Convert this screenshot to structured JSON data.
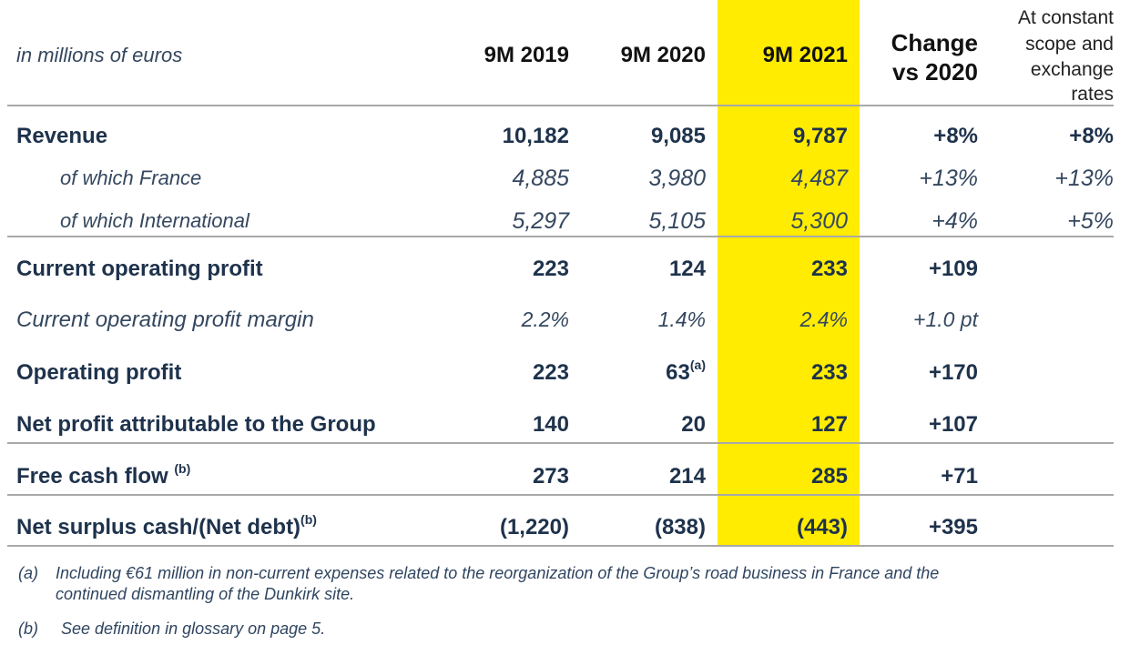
{
  "header": {
    "unit_label": "in millions of euros",
    "col_2019": "9M 2019",
    "col_2020": "9M 2020",
    "col_2021": "9M 2021",
    "col_change_l1": "Change",
    "col_change_l2": "vs 2020",
    "col_const_l1": "At constant",
    "col_const_l2": "scope and",
    "col_const_l3": "exchange",
    "col_const_l4": "rates"
  },
  "highlight_color": "#ffec00",
  "rows": [
    {
      "label": "Revenue",
      "v2019": "10,182",
      "v2020": "9,085",
      "v2021": "9,787",
      "change": "+8%",
      "constant": "+8%"
    },
    {
      "label": "of which France",
      "v2019": "4,885",
      "v2020": "3,980",
      "v2021": "4,487",
      "change": "+13%",
      "constant": "+13%"
    },
    {
      "label": "of which International",
      "v2019": "5,297",
      "v2020": "5,105",
      "v2021": "5,300",
      "change": "+4%",
      "constant": "+5%"
    },
    {
      "label": "Current operating profit",
      "v2019": "223",
      "v2020": "124",
      "v2021": "233",
      "change": "+109",
      "constant": ""
    },
    {
      "label": "Current operating profit margin",
      "v2019": "2.2%",
      "v2020": "1.4%",
      "v2021": "2.4%",
      "change": "+1.0 pt",
      "constant": ""
    },
    {
      "label": "Operating profit",
      "v2019": "223",
      "v2020": "63",
      "v2020_sup": "(a)",
      "v2021": "233",
      "change": "+170",
      "constant": ""
    },
    {
      "label": "Net profit attributable to the Group",
      "v2019": "140",
      "v2020": "20",
      "v2021": "127",
      "change": "+107",
      "constant": ""
    },
    {
      "label": "Free cash flow ",
      "label_sup": "(b)",
      "v2019": "273",
      "v2020": "214",
      "v2021": "285",
      "change": "+71",
      "constant": ""
    },
    {
      "label": "Net surplus cash/(Net debt)",
      "label_sup": "(b)",
      "v2019": "(1,220)",
      "v2020": "(838)",
      "v2021": "(443)",
      "change": "+395",
      "constant": ""
    }
  ],
  "footnotes": {
    "a_marker": "(a)",
    "a_line1": "Including €61 million in non-current expenses related to the reorganization of the Group’s road business in France and the",
    "a_line2": "continued dismantling of the Dunkirk site.",
    "b_marker": "(b)",
    "b_text": "See definition in glossary on page 5."
  }
}
